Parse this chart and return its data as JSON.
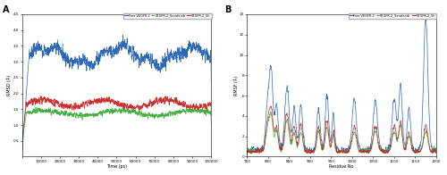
{
  "panel_A": {
    "ylabel": "RMSD (Å)",
    "xlabel": "Time (ps)",
    "xlim": [
      0,
      100000
    ],
    "ylim": [
      0,
      4.5
    ],
    "yticks": [
      0.5,
      1.0,
      1.5,
      2.0,
      2.5,
      3.0,
      3.5,
      4.0,
      4.5
    ],
    "xticks": [
      0,
      10000,
      20000,
      30000,
      40000,
      50000,
      60000,
      70000,
      80000,
      90000,
      100000
    ],
    "legend_labels": [
      "Free VEGFR-2",
      "VEGFR-2_Sorafenib",
      "VEGFR-2_5h"
    ],
    "colors": [
      "#2060b0",
      "#3aaa35",
      "#cc2222"
    ]
  },
  "panel_B": {
    "ylabel": "RMSF (Å)",
    "xlabel": "Residue No.",
    "xlim": [
      750,
      1200
    ],
    "ylim": [
      0,
      14
    ],
    "yticks": [
      0,
      2,
      4,
      6,
      8,
      10,
      12,
      14
    ],
    "xticks": [
      750,
      800,
      850,
      900,
      950,
      1000,
      1050,
      1100,
      1150,
      1200
    ],
    "legend_labels": [
      "Free VEGFR-2",
      "VEGFR-2_Sorafenib",
      "VEGFR-2_5h"
    ],
    "colors": [
      "#2060b0",
      "#3aaa35",
      "#cc2222"
    ]
  }
}
